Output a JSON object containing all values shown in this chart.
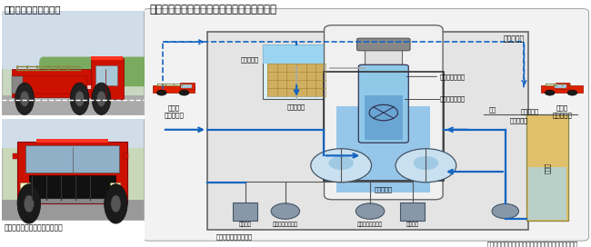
{
  "title_left": "代替注水用車両の配備",
  "title_right": "原子炉や燃料プールへの代替注水配管の設置",
  "caption_left": "敷地内に複数台を分散させ配備",
  "caption_bottom": "代替注水配管の敷設工事に加え、代替注水配管を多重化",
  "label_nuclear_building": "原子炉建物",
  "label_fuel_pool": "燃料プール",
  "label_used_fuel": "使用済燃料",
  "label_containment": "原子炉格納容器",
  "label_pressure_vessel": "原子炉圧力容器",
  "label_pressure_suppression": "圧力抑制室",
  "label_heat_exchanger1": "熱交換器",
  "label_pump1": "残留熱除去ポンプ",
  "label_pump2": "残留熱除去ポンプ",
  "label_heat_exchanger2": "熱交換器",
  "label_injection_pump": "注水ポンプ",
  "label_ground": "地表",
  "label_injection_tank": "注水槽",
  "label_truck_left1": "送水車",
  "label_truck_left2": "大量送水車",
  "label_truck_right1": "送水車",
  "label_truck_right2": "大量送水車",
  "label_unit2": "〈２号機イメージ図〉",
  "bg_color": "#ffffff",
  "arrow_blue": "#1565c0",
  "blue_pipe": "#1565c0"
}
